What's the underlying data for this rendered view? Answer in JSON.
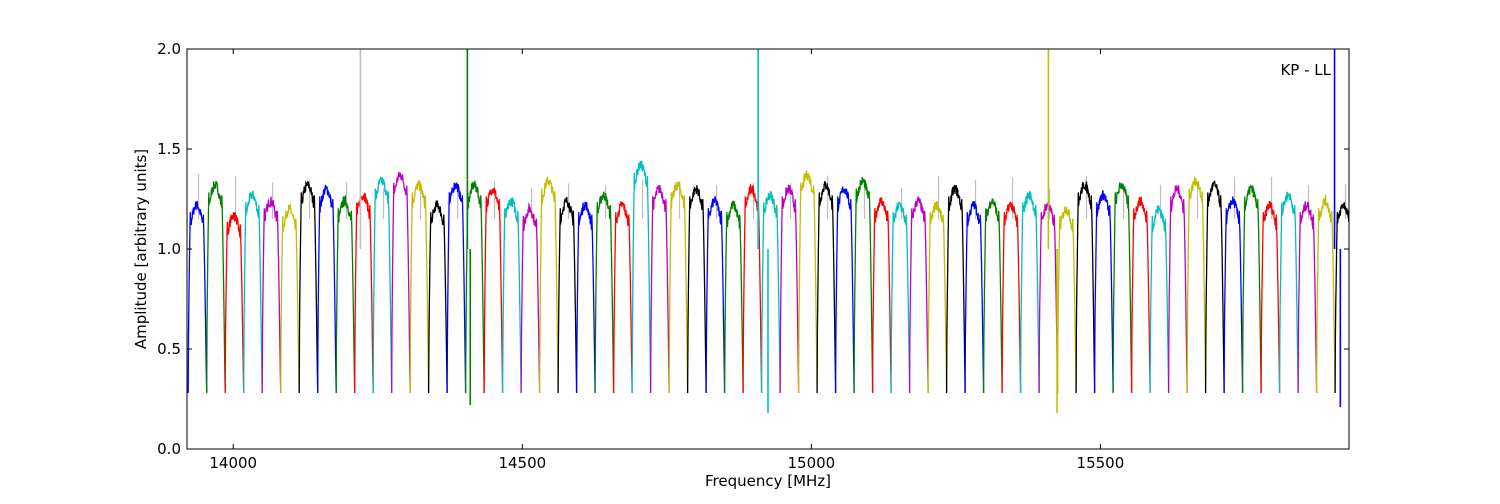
{
  "chart_data": {
    "type": "line",
    "annotation": "KP - LL",
    "xlabel": "Frequency [MHz]",
    "ylabel": "Amplitude [arbitrary units]",
    "xlim": [
      13920,
      15930
    ],
    "ylim": [
      0.0,
      2.0
    ],
    "x_ticks": [
      14000,
      14500,
      15000,
      15500
    ],
    "x_tick_labels": [
      "14000",
      "14500",
      "15000",
      "15500"
    ],
    "y_ticks": [
      0.0,
      0.5,
      1.0,
      1.5,
      2.0
    ],
    "y_tick_labels": [
      "0.0",
      "0.5",
      "1.0",
      "1.5",
      "2.0"
    ],
    "grid": false,
    "series_colors": [
      "#0000ff",
      "#008000",
      "#ff0000",
      "#00bfbf",
      "#bf00bf",
      "#bfbf00",
      "#000000"
    ],
    "background_series_color": "#bebebe",
    "channel_spacing_mhz": 32,
    "channel_start_mhz": 13922,
    "channel_count": 63,
    "channel_levels": [
      1.2,
      1.3,
      1.15,
      1.25,
      1.22,
      1.18,
      1.3,
      1.28,
      1.22,
      1.25,
      1.32,
      1.35,
      1.3,
      1.2,
      1.3,
      1.3,
      1.28,
      1.22,
      1.18,
      1.32,
      1.22,
      1.2,
      1.25,
      1.2,
      1.4,
      1.28,
      1.3,
      1.28,
      1.22,
      1.2,
      1.28,
      1.25,
      1.28,
      1.35,
      1.3,
      1.28,
      1.32,
      1.22,
      1.2,
      1.22,
      1.2,
      1.28,
      1.2,
      1.22,
      1.2,
      1.25,
      1.2,
      1.18,
      1.3,
      1.25,
      1.3,
      1.22,
      1.18,
      1.28,
      1.32,
      1.3,
      1.22,
      1.28,
      1.2,
      1.25,
      1.2,
      1.22,
      1.2
    ],
    "spikes": [
      {
        "x": 14220,
        "y": 2.0,
        "color": "#bebebe"
      },
      {
        "x": 14405,
        "y": 2.0,
        "color": "#008000"
      },
      {
        "x": 14410,
        "y": 0.22,
        "color": "#008000"
      },
      {
        "x": 14908,
        "y": 2.0,
        "color": "#00bfbf"
      },
      {
        "x": 14925,
        "y": 0.18,
        "color": "#00bfbf"
      },
      {
        "x": 15410,
        "y": 2.0,
        "color": "#bfbf00"
      },
      {
        "x": 15425,
        "y": 0.18,
        "color": "#bfbf00"
      },
      {
        "x": 15905,
        "y": 2.0,
        "color": "#0000ff"
      },
      {
        "x": 15915,
        "y": 0.21,
        "color": "#0000ff"
      }
    ]
  }
}
